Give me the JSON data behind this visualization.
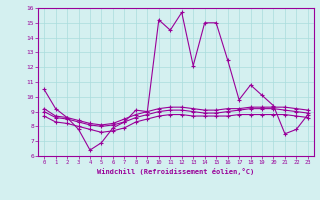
{
  "xlabel": "Windchill (Refroidissement éolien,°C)",
  "x": [
    0,
    1,
    2,
    3,
    4,
    5,
    6,
    7,
    8,
    9,
    10,
    11,
    12,
    13,
    14,
    15,
    16,
    17,
    18,
    19,
    20,
    21,
    22,
    23
  ],
  "line1": [
    10.5,
    9.2,
    8.6,
    7.8,
    6.4,
    6.9,
    7.9,
    8.3,
    9.1,
    9.0,
    15.2,
    14.5,
    15.7,
    12.1,
    15.0,
    15.0,
    12.5,
    9.8,
    10.8,
    10.1,
    9.4,
    7.5,
    7.8,
    8.8
  ],
  "line2": [
    9.0,
    8.6,
    8.5,
    8.3,
    8.1,
    8.0,
    8.1,
    8.3,
    8.6,
    8.8,
    9.0,
    9.1,
    9.1,
    9.0,
    8.9,
    8.9,
    9.0,
    9.1,
    9.2,
    9.2,
    9.2,
    9.1,
    9.0,
    8.9
  ],
  "line3": [
    9.2,
    8.7,
    8.6,
    8.4,
    8.2,
    8.1,
    8.2,
    8.5,
    8.8,
    9.0,
    9.2,
    9.3,
    9.3,
    9.2,
    9.1,
    9.1,
    9.2,
    9.2,
    9.3,
    9.3,
    9.3,
    9.3,
    9.2,
    9.1
  ],
  "line4": [
    8.7,
    8.3,
    8.2,
    8.0,
    7.8,
    7.6,
    7.7,
    7.9,
    8.3,
    8.5,
    8.7,
    8.8,
    8.8,
    8.7,
    8.7,
    8.7,
    8.7,
    8.8,
    8.8,
    8.8,
    8.8,
    8.8,
    8.7,
    8.6
  ],
  "line_color": "#990099",
  "bg_color": "#d4f0f0",
  "grid_color": "#aadddd",
  "ylim": [
    6,
    16
  ],
  "yticks": [
    6,
    7,
    8,
    9,
    10,
    11,
    12,
    13,
    14,
    15,
    16
  ]
}
